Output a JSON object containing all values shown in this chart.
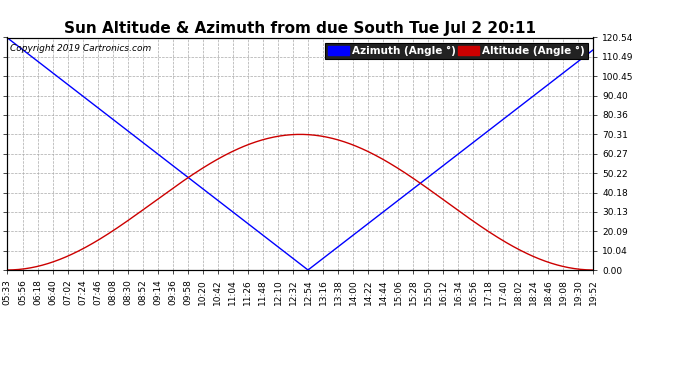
{
  "title": "Sun Altitude & Azimuth from due South Tue Jul 2 20:11",
  "copyright": "Copyright 2019 Cartronics.com",
  "legend_azimuth": "Azimuth (Angle °)",
  "legend_altitude": "Altitude (Angle °)",
  "azimuth_color": "#0000ff",
  "altitude_color": "#cc0000",
  "legend_az_bg": "#0000ff",
  "legend_alt_bg": "#cc0000",
  "background_color": "#ffffff",
  "grid_color": "#aaaaaa",
  "ytick_labels": [
    "0.00",
    "10.04",
    "20.09",
    "30.13",
    "40.18",
    "50.22",
    "60.27",
    "70.31",
    "80.36",
    "90.40",
    "100.45",
    "110.49",
    "120.54"
  ],
  "ytick_values": [
    0.0,
    10.04,
    20.09,
    30.13,
    40.18,
    50.22,
    60.27,
    70.31,
    80.36,
    90.4,
    100.45,
    110.49,
    120.54
  ],
  "xtick_labels": [
    "05:33",
    "05:56",
    "06:18",
    "06:40",
    "07:02",
    "07:24",
    "07:46",
    "08:08",
    "08:30",
    "08:52",
    "09:14",
    "09:36",
    "09:58",
    "10:20",
    "10:42",
    "11:04",
    "11:26",
    "11:48",
    "12:10",
    "12:32",
    "12:54",
    "13:16",
    "13:38",
    "14:00",
    "14:22",
    "14:44",
    "15:06",
    "15:28",
    "15:50",
    "16:12",
    "16:34",
    "16:56",
    "17:18",
    "17:40",
    "18:02",
    "18:24",
    "18:46",
    "19:08",
    "19:30",
    "19:52"
  ],
  "title_fontsize": 11,
  "tick_fontsize": 6.5,
  "legend_fontsize": 7.5,
  "copyright_fontsize": 6.5,
  "azimuth_max": 120.54,
  "altitude_max": 70.31,
  "noon_time": "12:54",
  "ymax": 120.54
}
